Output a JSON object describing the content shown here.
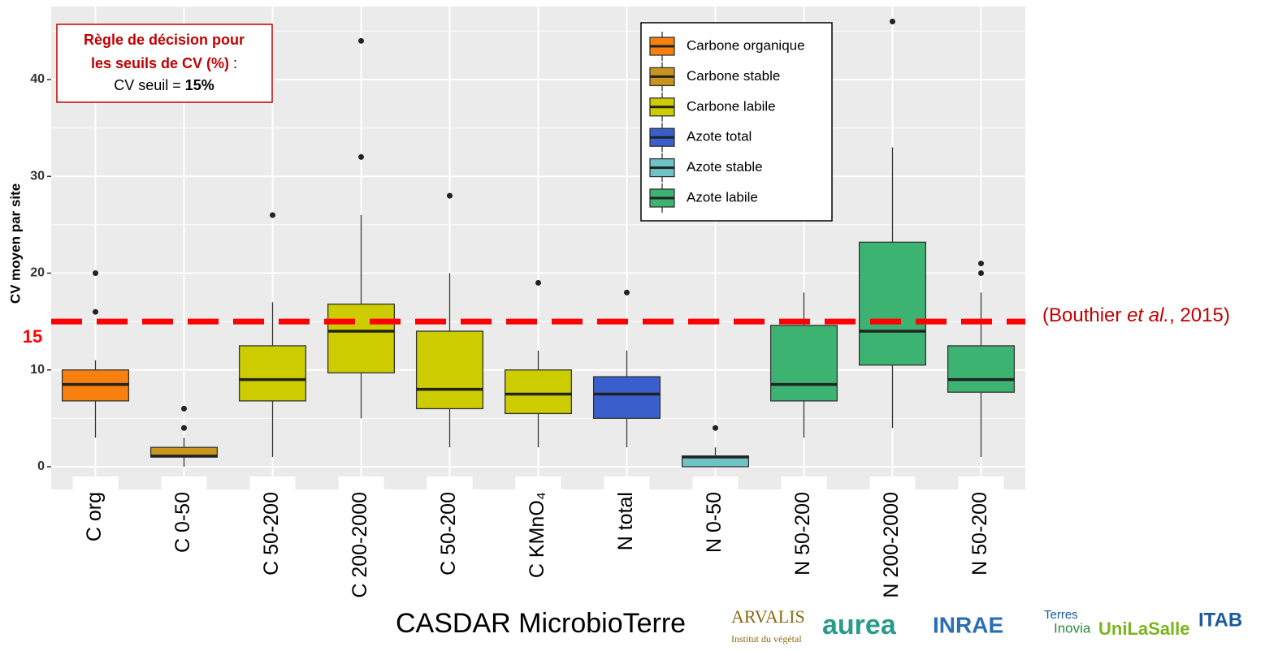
{
  "chart_data": {
    "type": "box",
    "y_label": "CV moyen par site",
    "categories": [
      "C org",
      "C 0-50",
      "C 50-200",
      "C 200-2000",
      "C 50-200",
      "C KMnO₄",
      "N total",
      "N 0-50",
      "N 50-200",
      "N 200-2000",
      "N 50-200"
    ],
    "colors": [
      "#f8800e",
      "#c8961e",
      "#cccc00",
      "#cccc00",
      "#cccc00",
      "#cccc00",
      "#3a5fcd",
      "#6fc3c6",
      "#3cb371",
      "#3cb371",
      "#3cb371"
    ],
    "boxes": [
      {
        "low": 3,
        "q1": 6.8,
        "median": 8.5,
        "q3": 10,
        "high": 11,
        "outliers": [
          16,
          20
        ]
      },
      {
        "low": 0,
        "q1": 1,
        "median": 1.1,
        "q3": 2,
        "high": 3,
        "outliers": [
          4,
          6
        ]
      },
      {
        "low": 1,
        "q1": 6.8,
        "median": 9,
        "q3": 12.5,
        "high": 17,
        "outliers": [
          26
        ]
      },
      {
        "low": 5,
        "q1": 9.7,
        "median": 14,
        "q3": 16.8,
        "high": 26,
        "outliers": [
          32,
          44
        ]
      },
      {
        "low": 2,
        "q1": 6,
        "median": 8,
        "q3": 14,
        "high": 20,
        "outliers": [
          28
        ]
      },
      {
        "low": 2,
        "q1": 5.5,
        "median": 7.5,
        "q3": 10,
        "high": 12,
        "outliers": [
          19
        ]
      },
      {
        "low": 2,
        "q1": 5,
        "median": 7.5,
        "q3": 9.3,
        "high": 12,
        "outliers": [
          18
        ]
      },
      {
        "low": 0,
        "q1": 0,
        "median": 1,
        "q3": 1.1,
        "high": 2,
        "outliers": [
          4
        ]
      },
      {
        "low": 3,
        "q1": 6.8,
        "median": 8.5,
        "q3": 14.6,
        "high": 18,
        "outliers": []
      },
      {
        "low": 4,
        "q1": 10.5,
        "median": 14,
        "q3": 23.2,
        "high": 33,
        "outliers": [
          46
        ]
      },
      {
        "low": 1,
        "q1": 7.7,
        "median": 9,
        "q3": 12.5,
        "high": 18,
        "outliers": [
          20,
          21
        ]
      }
    ],
    "legend": [
      {
        "name": "Carbone organique",
        "color": "#f8800e"
      },
      {
        "name": "Carbone stable",
        "color": "#c8961e"
      },
      {
        "name": "Carbone labile",
        "color": "#cccc00"
      },
      {
        "name": "Azote total",
        "color": "#3a5fcd"
      },
      {
        "name": "Azote stable",
        "color": "#6fc3c6"
      },
      {
        "name": "Azote labile",
        "color": "#3cb371"
      }
    ],
    "ylim": [
      -2.35,
      47.55
    ],
    "yticks": [
      0,
      10,
      20,
      30,
      40
    ],
    "minor_yticks": [
      5,
      15,
      25,
      35,
      45
    ],
    "grid": true,
    "threshold": {
      "value": 15,
      "label": "15",
      "color": "#ff0000"
    },
    "reference": [
      "(Bouthier ",
      "et al.",
      ", 2015)"
    ],
    "decision_box": {
      "line1": "Règle de décision pour",
      "line2": "les seuils de CV (%)",
      "line2_end": " :",
      "line3": "CV seuil = ",
      "line3_bold": "15%"
    }
  },
  "footer": {
    "title": "CASDAR MicrobioTerre",
    "logos": [
      "ARVALIS",
      "Institut du végétal",
      "aurea",
      "INRAE",
      "Terres",
      "Inovia",
      "UniLaSalle",
      "ITAB"
    ]
  }
}
